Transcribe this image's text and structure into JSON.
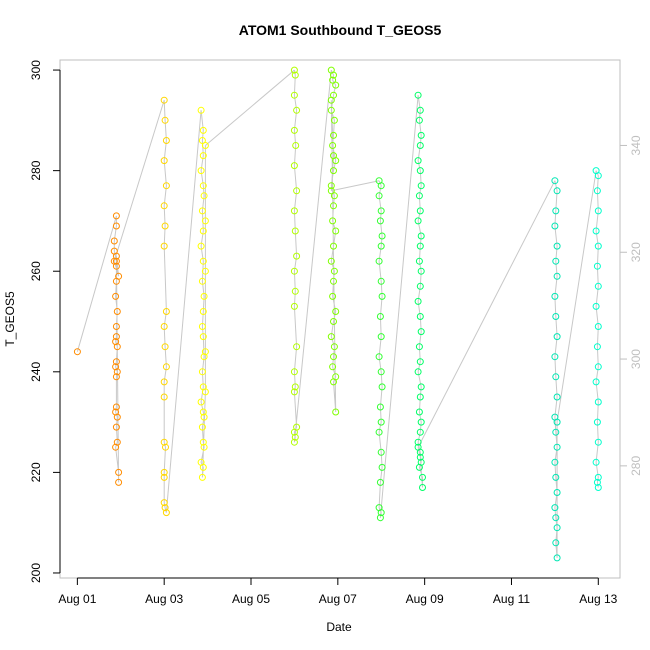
{
  "chart_data": {
    "type": "scatter",
    "title": "ATOM1 Southbound T_GEOS5",
    "xlabel": "Date",
    "ylabel": "T_GEOS5",
    "x_ticks": [
      "Aug 01",
      "Aug 03",
      "Aug 05",
      "Aug 07",
      "Aug 09",
      "Aug 11",
      "Aug 13"
    ],
    "x_tick_days": [
      1,
      3,
      5,
      7,
      9,
      11,
      13
    ],
    "xlim_days": [
      0.6,
      13.5
    ],
    "ylim": [
      199,
      302
    ],
    "y_ticks": [
      200,
      220,
      240,
      260,
      280,
      300
    ],
    "y2lim": [
      259,
      356
    ],
    "y2_ticks": [
      280,
      300,
      320,
      340
    ],
    "grid": false,
    "series": [
      {
        "color": "#ff8c00",
        "points": [
          [
            1.0,
            244
          ],
          [
            1.9,
            271
          ],
          [
            1.9,
            269
          ],
          [
            1.85,
            266
          ],
          [
            1.85,
            264
          ],
          [
            1.9,
            262
          ],
          [
            1.9,
            261
          ],
          [
            1.9,
            258
          ],
          [
            1.88,
            255
          ],
          [
            1.92,
            252
          ],
          [
            1.9,
            249
          ],
          [
            1.9,
            247
          ],
          [
            1.88,
            246
          ],
          [
            1.92,
            245
          ],
          [
            1.9,
            242
          ],
          [
            1.88,
            241
          ],
          [
            1.92,
            240
          ],
          [
            1.9,
            239
          ],
          [
            1.9,
            233
          ],
          [
            1.88,
            232
          ],
          [
            1.92,
            231
          ],
          [
            1.9,
            229
          ],
          [
            1.92,
            226
          ],
          [
            1.88,
            225
          ],
          [
            1.95,
            220
          ],
          [
            1.95,
            218
          ],
          [
            1.9,
            263
          ],
          [
            1.95,
            259
          ],
          [
            1.85,
            262
          ]
        ]
      },
      {
        "color": "#ffd700",
        "points": [
          [
            3.0,
            294
          ],
          [
            3.02,
            290
          ],
          [
            3.05,
            286
          ],
          [
            3.0,
            282
          ],
          [
            3.05,
            277
          ],
          [
            3.0,
            273
          ],
          [
            3.02,
            269
          ],
          [
            3.0,
            265
          ],
          [
            3.05,
            252
          ],
          [
            3.0,
            249
          ],
          [
            3.02,
            245
          ],
          [
            3.05,
            241
          ],
          [
            3.0,
            238
          ],
          [
            3.0,
            235
          ],
          [
            3.0,
            226
          ],
          [
            3.03,
            225
          ],
          [
            3.0,
            220
          ],
          [
            3.0,
            219
          ],
          [
            3.0,
            214
          ],
          [
            3.02,
            213
          ],
          [
            3.05,
            212
          ]
        ]
      },
      {
        "color": "#ffff00",
        "points": [
          [
            3.85,
            292
          ],
          [
            3.9,
            288
          ],
          [
            3.88,
            286
          ],
          [
            3.9,
            283
          ],
          [
            3.85,
            280
          ],
          [
            3.9,
            277
          ],
          [
            3.92,
            275
          ],
          [
            3.88,
            272
          ],
          [
            3.9,
            268
          ],
          [
            3.85,
            265
          ],
          [
            3.9,
            262
          ],
          [
            3.88,
            258
          ],
          [
            3.92,
            255
          ],
          [
            3.9,
            252
          ],
          [
            3.88,
            249
          ],
          [
            3.9,
            247
          ],
          [
            3.92,
            243
          ],
          [
            3.88,
            240
          ],
          [
            3.9,
            237
          ],
          [
            3.85,
            234
          ],
          [
            3.9,
            232
          ],
          [
            3.92,
            231
          ],
          [
            3.88,
            229
          ],
          [
            3.9,
            226
          ],
          [
            3.92,
            225
          ],
          [
            3.85,
            222
          ],
          [
            3.9,
            221
          ],
          [
            3.88,
            219
          ],
          [
            3.95,
            236
          ],
          [
            3.95,
            244
          ],
          [
            3.95,
            260
          ],
          [
            3.95,
            270
          ],
          [
            3.95,
            285
          ]
        ]
      },
      {
        "color": "#b3ff00",
        "points": [
          [
            6.0,
            300
          ],
          [
            6.02,
            299
          ],
          [
            6.0,
            295
          ],
          [
            6.05,
            292
          ],
          [
            6.0,
            288
          ],
          [
            6.03,
            285
          ],
          [
            6.0,
            281
          ],
          [
            6.05,
            276
          ],
          [
            6.0,
            272
          ],
          [
            6.02,
            268
          ],
          [
            6.05,
            263
          ],
          [
            6.0,
            260
          ],
          [
            6.02,
            256
          ],
          [
            6.0,
            253
          ],
          [
            6.05,
            245
          ],
          [
            6.0,
            240
          ],
          [
            6.02,
            237
          ],
          [
            6.0,
            236
          ],
          [
            6.05,
            229
          ],
          [
            6.0,
            228
          ],
          [
            6.02,
            227
          ],
          [
            6.0,
            226
          ]
        ]
      },
      {
        "color": "#80ff00",
        "points": [
          [
            6.85,
            300
          ],
          [
            6.9,
            299
          ],
          [
            6.88,
            298
          ],
          [
            6.95,
            297
          ],
          [
            6.9,
            295
          ],
          [
            6.85,
            292
          ],
          [
            6.92,
            290
          ],
          [
            6.9,
            287
          ],
          [
            6.88,
            285
          ],
          [
            6.95,
            282
          ],
          [
            6.9,
            280
          ],
          [
            6.85,
            277
          ],
          [
            6.92,
            275
          ],
          [
            6.9,
            273
          ],
          [
            6.88,
            270
          ],
          [
            6.95,
            268
          ],
          [
            6.9,
            265
          ],
          [
            6.85,
            262
          ],
          [
            6.92,
            260
          ],
          [
            6.9,
            258
          ],
          [
            6.88,
            255
          ],
          [
            6.95,
            252
          ],
          [
            6.9,
            250
          ],
          [
            6.85,
            247
          ],
          [
            6.92,
            245
          ],
          [
            6.9,
            243
          ],
          [
            6.88,
            241
          ],
          [
            6.95,
            239
          ],
          [
            6.9,
            238
          ],
          [
            6.95,
            232
          ],
          [
            6.85,
            294
          ],
          [
            6.9,
            283
          ],
          [
            6.85,
            276
          ]
        ]
      },
      {
        "color": "#33ff33",
        "points": [
          [
            7.95,
            278
          ],
          [
            8.0,
            277
          ],
          [
            7.95,
            275
          ],
          [
            8.0,
            272
          ],
          [
            7.98,
            270
          ],
          [
            8.02,
            267
          ],
          [
            8.0,
            265
          ],
          [
            7.95,
            262
          ],
          [
            8.0,
            258
          ],
          [
            8.02,
            255
          ],
          [
            7.98,
            251
          ],
          [
            8.0,
            247
          ],
          [
            7.95,
            243
          ],
          [
            8.0,
            240
          ],
          [
            8.02,
            237
          ],
          [
            7.98,
            233
          ],
          [
            8.0,
            230
          ],
          [
            7.95,
            228
          ],
          [
            8.0,
            224
          ],
          [
            8.02,
            221
          ],
          [
            7.98,
            218
          ],
          [
            7.95,
            213
          ],
          [
            8.0,
            212
          ],
          [
            7.98,
            211
          ]
        ]
      },
      {
        "color": "#00ff66",
        "points": [
          [
            8.85,
            295
          ],
          [
            8.9,
            292
          ],
          [
            8.88,
            290
          ],
          [
            8.92,
            287
          ],
          [
            8.9,
            285
          ],
          [
            8.85,
            282
          ],
          [
            8.9,
            280
          ],
          [
            8.92,
            277
          ],
          [
            8.88,
            275
          ],
          [
            8.9,
            272
          ],
          [
            8.85,
            270
          ],
          [
            8.92,
            267
          ],
          [
            8.9,
            265
          ],
          [
            8.88,
            262
          ],
          [
            8.92,
            260
          ],
          [
            8.9,
            257
          ],
          [
            8.85,
            254
          ],
          [
            8.9,
            251
          ],
          [
            8.92,
            248
          ],
          [
            8.88,
            245
          ],
          [
            8.9,
            242
          ],
          [
            8.85,
            240
          ],
          [
            8.92,
            237
          ],
          [
            8.9,
            235
          ],
          [
            8.88,
            232
          ],
          [
            8.92,
            230
          ],
          [
            8.9,
            228
          ],
          [
            8.85,
            226
          ],
          [
            8.9,
            224
          ],
          [
            8.92,
            222
          ],
          [
            8.88,
            221
          ],
          [
            8.95,
            219
          ],
          [
            8.95,
            217
          ],
          [
            8.9,
            223
          ],
          [
            8.85,
            225
          ]
        ]
      },
      {
        "color": "#00e6b3",
        "points": [
          [
            12.0,
            278
          ],
          [
            12.05,
            276
          ],
          [
            12.02,
            272
          ],
          [
            12.0,
            269
          ],
          [
            12.05,
            265
          ],
          [
            12.02,
            262
          ],
          [
            12.05,
            259
          ],
          [
            12.0,
            255
          ],
          [
            12.02,
            251
          ],
          [
            12.05,
            247
          ],
          [
            12.0,
            243
          ],
          [
            12.02,
            239
          ],
          [
            12.05,
            235
          ],
          [
            12.0,
            231
          ],
          [
            12.02,
            228
          ],
          [
            12.05,
            225
          ],
          [
            12.0,
            222
          ],
          [
            12.02,
            219
          ],
          [
            12.05,
            216
          ],
          [
            12.0,
            213
          ],
          [
            12.02,
            211
          ],
          [
            12.05,
            209
          ],
          [
            12.02,
            206
          ],
          [
            12.05,
            203
          ],
          [
            12.05,
            230
          ]
        ]
      },
      {
        "color": "#00ffcc",
        "points": [
          [
            12.95,
            280
          ],
          [
            13.0,
            279
          ],
          [
            12.98,
            276
          ],
          [
            13.0,
            272
          ],
          [
            12.95,
            268
          ],
          [
            13.0,
            265
          ],
          [
            12.98,
            261
          ],
          [
            13.0,
            257
          ],
          [
            12.95,
            253
          ],
          [
            13.0,
            249
          ],
          [
            12.98,
            245
          ],
          [
            13.0,
            241
          ],
          [
            12.95,
            238
          ],
          [
            13.0,
            234
          ],
          [
            12.98,
            230
          ],
          [
            13.0,
            226
          ],
          [
            12.95,
            222
          ],
          [
            13.0,
            219
          ],
          [
            12.98,
            218
          ],
          [
            13.0,
            217
          ]
        ]
      }
    ]
  }
}
